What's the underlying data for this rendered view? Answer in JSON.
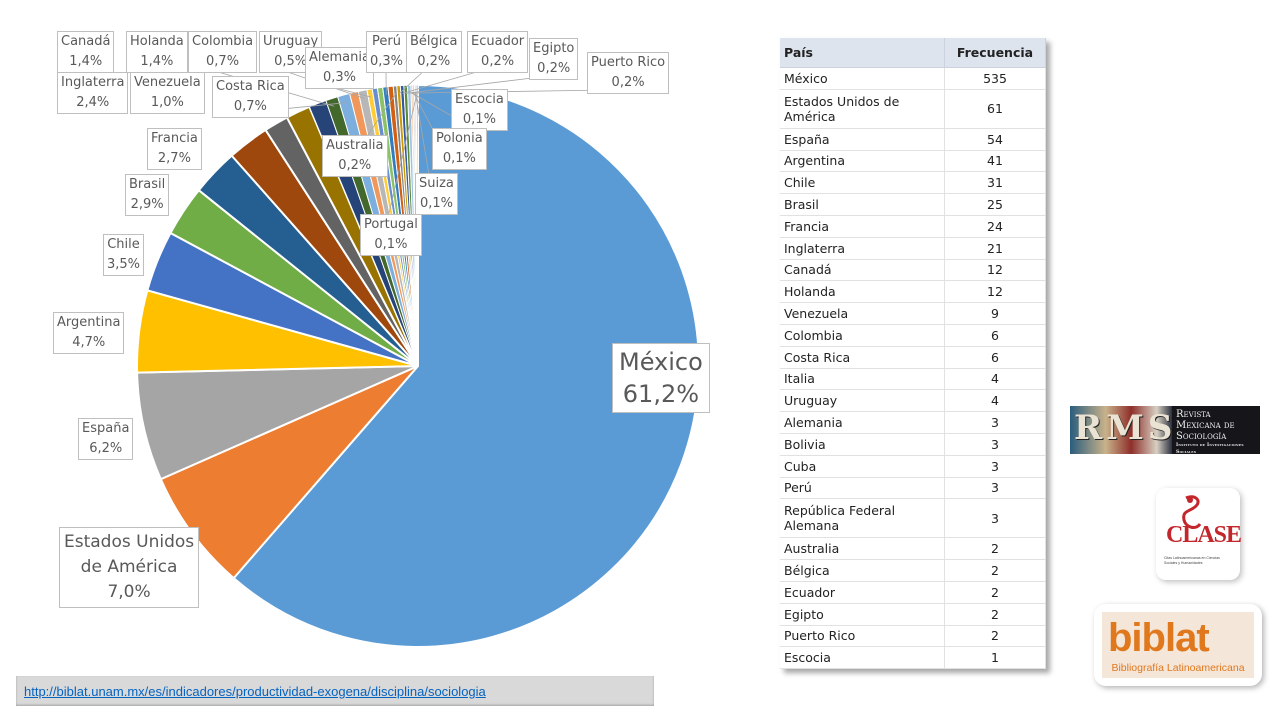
{
  "chart_data": {
    "type": "pie",
    "slices": [
      {
        "name": "México",
        "label_value": "61,2%",
        "value": 61.2,
        "color": "#5b9bd5"
      },
      {
        "name": "Estados Unidos de América",
        "label_value": "7,0%",
        "value": 7.0,
        "color": "#ed7d31"
      },
      {
        "name": "España",
        "label_value": "6,2%",
        "value": 6.2,
        "color": "#a5a5a5"
      },
      {
        "name": "Argentina",
        "label_value": "4,7%",
        "value": 4.7,
        "color": "#ffc000"
      },
      {
        "name": "Chile",
        "label_value": "3,5%",
        "value": 3.5,
        "color": "#4472c4"
      },
      {
        "name": "Brasil",
        "label_value": "2,9%",
        "value": 2.9,
        "color": "#70ad47"
      },
      {
        "name": "Francia",
        "label_value": "2,7%",
        "value": 2.7,
        "color": "#255e91"
      },
      {
        "name": "Inglaterra",
        "label_value": "2,4%",
        "value": 2.4,
        "color": "#9e480e"
      },
      {
        "name": "Canadá",
        "label_value": "1,4%",
        "value": 1.4,
        "color": "#636363"
      },
      {
        "name": "Holanda",
        "label_value": "1,4%",
        "value": 1.4,
        "color": "#997300"
      },
      {
        "name": "Venezuela",
        "label_value": "1,0%",
        "value": 1.0,
        "color": "#264478"
      },
      {
        "name": "Colombia",
        "label_value": "0,7%",
        "value": 0.7,
        "color": "#43682b"
      },
      {
        "name": "Costa Rica",
        "label_value": "0,7%",
        "value": 0.7,
        "color": "#7cafdd"
      },
      {
        "name": "Italia",
        "label_value": "",
        "value": 0.5,
        "color": "#f1975a"
      },
      {
        "name": "Uruguay",
        "label_value": "0,5%",
        "value": 0.5,
        "color": "#b7b7b7"
      },
      {
        "name": "Alemania",
        "label_value": "0,3%",
        "value": 0.3,
        "color": "#ffcd33"
      },
      {
        "name": "Bolivia",
        "label_value": "",
        "value": 0.3,
        "color": "#698ed0"
      },
      {
        "name": "Cuba",
        "label_value": "",
        "value": 0.3,
        "color": "#8cc168"
      },
      {
        "name": "Perú",
        "label_value": "0,3%",
        "value": 0.3,
        "color": "#327dc2"
      },
      {
        "name": "República Federal Alemana",
        "label_value": "",
        "value": 0.3,
        "color": "#d26012"
      },
      {
        "name": "Australia",
        "label_value": "0,2%",
        "value": 0.2,
        "color": "#848484"
      },
      {
        "name": "Bélgica",
        "label_value": "0,2%",
        "value": 0.2,
        "color": "#cc9a00"
      },
      {
        "name": "Ecuador",
        "label_value": "0,2%",
        "value": 0.2,
        "color": "#335aa1"
      },
      {
        "name": "Egipto",
        "label_value": "0,2%",
        "value": 0.2,
        "color": "#5a8a39"
      },
      {
        "name": "Puerto Rico",
        "label_value": "0,2%",
        "value": 0.2,
        "color": "#9dc3e6"
      },
      {
        "name": "Escocia",
        "label_value": "0,1%",
        "value": 0.1,
        "color": "#f4b183"
      },
      {
        "name": "Polonia",
        "label_value": "0,1%",
        "value": 0.1,
        "color": "#c9c9c9"
      },
      {
        "name": "Suiza",
        "label_value": "0,1%",
        "value": 0.1,
        "color": "#ffd966"
      },
      {
        "name": "Portugal",
        "label_value": "0,1%",
        "value": 0.1,
        "color": "#8faadc"
      }
    ],
    "legend": "none"
  },
  "table": {
    "headers": {
      "country": "País",
      "frequency": "Frecuencia"
    },
    "rows": [
      {
        "country": "México",
        "frequency": "535"
      },
      {
        "country": "Estados Unidos de América",
        "frequency": "61",
        "tall": true
      },
      {
        "country": "España",
        "frequency": "54"
      },
      {
        "country": "Argentina",
        "frequency": "41"
      },
      {
        "country": "Chile",
        "frequency": "31"
      },
      {
        "country": "Brasil",
        "frequency": "25"
      },
      {
        "country": "Francia",
        "frequency": "24"
      },
      {
        "country": "Inglaterra",
        "frequency": "21"
      },
      {
        "country": "Canadá",
        "frequency": "12"
      },
      {
        "country": "Holanda",
        "frequency": "12"
      },
      {
        "country": "Venezuela",
        "frequency": "9"
      },
      {
        "country": "Colombia",
        "frequency": "6"
      },
      {
        "country": "Costa Rica",
        "frequency": "6"
      },
      {
        "country": "Italia",
        "frequency": "4"
      },
      {
        "country": "Uruguay",
        "frequency": "4"
      },
      {
        "country": "Alemania",
        "frequency": "3"
      },
      {
        "country": "Bolivia",
        "frequency": "3"
      },
      {
        "country": "Cuba",
        "frequency": "3"
      },
      {
        "country": "Perú",
        "frequency": "3"
      },
      {
        "country": "República Federal Alemana",
        "frequency": "3",
        "tall": true
      },
      {
        "country": "Australia",
        "frequency": "2"
      },
      {
        "country": "Bélgica",
        "frequency": "2"
      },
      {
        "country": "Ecuador",
        "frequency": "2"
      },
      {
        "country": "Egipto",
        "frequency": "2"
      },
      {
        "country": "Puerto Rico",
        "frequency": "2"
      },
      {
        "country": "Escocia",
        "frequency": "1"
      }
    ]
  },
  "logos": {
    "rms": {
      "mark": "RMS",
      "line1": "Revista",
      "line2": "Mexicana de",
      "line3": "Sociología",
      "line4": "Instituto de Investigaciones Sociales"
    },
    "clase": {
      "word": "CLASE",
      "sub": "Citas Latinoamericanas en Ciencias Sociales y Humanidades"
    },
    "biblat": {
      "word": "biblat",
      "sub": "Bibliografía Latinoamericana"
    }
  },
  "source_url": "http://biblat.unam.mx/es/indicadores/productividad-exogena/disciplina/sociologia"
}
